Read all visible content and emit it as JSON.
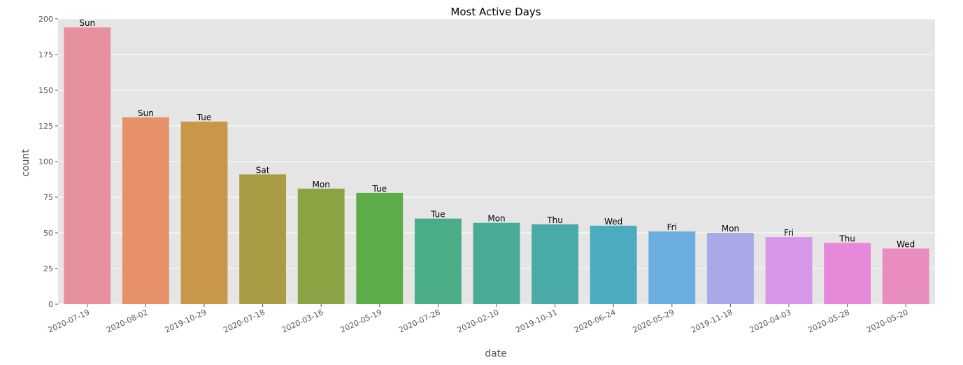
{
  "chart_data": {
    "type": "bar",
    "title": "Most Active Days",
    "xlabel": "date",
    "ylabel": "count",
    "ylim": [
      0,
      200
    ],
    "yticks": [
      0,
      25,
      50,
      75,
      100,
      125,
      150,
      175,
      200
    ],
    "grid": true,
    "categories": [
      "2020-07-19",
      "2020-08-02",
      "2019-10-29",
      "2020-07-18",
      "2020-03-16",
      "2020-05-19",
      "2020-07-28",
      "2020-02-10",
      "2019-10-31",
      "2020-06-24",
      "2020-05-29",
      "2019-11-18",
      "2020-04-03",
      "2020-05-28",
      "2020-05-20"
    ],
    "values": [
      194,
      131,
      128,
      91,
      81,
      78,
      60,
      57,
      56,
      55,
      51,
      50,
      47,
      43,
      39
    ],
    "bar_labels": [
      "Sun",
      "Sun",
      "Tue",
      "Sat",
      "Mon",
      "Tue",
      "Tue",
      "Mon",
      "Thu",
      "Wed",
      "Fri",
      "Mon",
      "Fri",
      "Thu",
      "Wed"
    ],
    "colors": [
      "#e8919e",
      "#e6916a",
      "#c8974a",
      "#a89d45",
      "#8aa443",
      "#5cad47",
      "#4aad86",
      "#48aa97",
      "#49aaa6",
      "#4dabbf",
      "#6aaee0",
      "#aaa8e8",
      "#d797e8",
      "#e888d8",
      "#e88dbd"
    ],
    "background_color": "#e5e5e5",
    "grid_color": "#ffffff"
  }
}
